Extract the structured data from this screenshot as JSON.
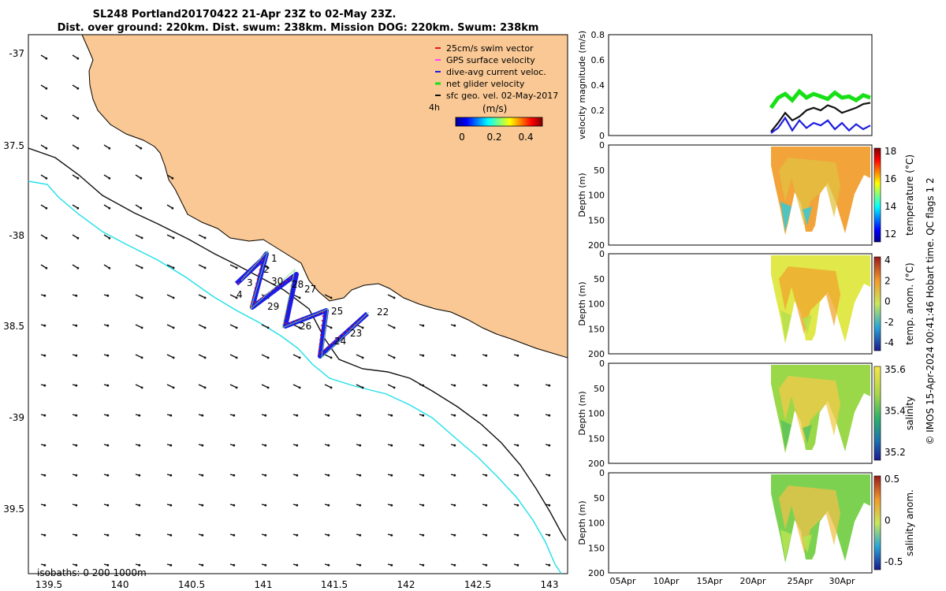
{
  "title": {
    "line1": "SL248 Portland20170422 21-Apr 23Z to 02-May 23Z.",
    "line2": "Dist. over ground: 220km. Dist. swum: 238km. Mission DOG: 220km. Swum: 238km"
  },
  "map": {
    "lon_ticks": [
      "139.5",
      "140",
      "140.5",
      "141",
      "141.5",
      "142",
      "142.5",
      "143"
    ],
    "lat_ticks": [
      "-37",
      "37.5",
      "-38",
      "38.5",
      "-39",
      "39.5"
    ],
    "isobaths_note": "isobaths: 0   200  1000m",
    "legend": [
      {
        "label": "25cm/s swim vector",
        "color": "#e8161b"
      },
      {
        "label": "GPS surface velocity",
        "color": "#ff40ff"
      },
      {
        "label": "dive-avg current veloc.",
        "color": "#1d1de0"
      },
      {
        "label": "net glider velocity",
        "color": "#17e017"
      },
      {
        "label": "sfc geo. vel. 02-May-2017",
        "color": "#111111"
      }
    ],
    "legend_interval": "4h",
    "colorbar_units": "(m/s)",
    "colorbar_ticks": [
      "0",
      "0.2",
      "0.4"
    ],
    "waypoints": [
      "1",
      "2",
      "3",
      "4",
      "30",
      "29",
      "28",
      "27",
      "26",
      "25",
      "24",
      "23",
      "22"
    ],
    "colors": {
      "land": "#f9c894",
      "track": "#1c1ce6",
      "track_marker": "#e51b1b",
      "isobath_200": "#1fe0e8",
      "isobath_1000": "#111111"
    }
  },
  "chart_data": [
    {
      "type": "line",
      "ylabel": "velocity magnitude (m/s)",
      "ylim": [
        0,
        0.8
      ],
      "yticks": [
        "0",
        "0.2",
        "0.4",
        "0.6",
        "0.8"
      ],
      "series": [
        {
          "name": "net glider velocity",
          "color": "#17e017",
          "values": [
            0.22,
            0.3,
            0.33,
            0.28,
            0.35,
            0.3,
            0.33,
            0.31,
            0.29,
            0.34,
            0.3,
            0.31,
            0.28,
            0.32,
            0.3
          ]
        },
        {
          "name": "sfc geo. vel.",
          "color": "#111111",
          "values": [
            0.03,
            0.1,
            0.18,
            0.12,
            0.15,
            0.2,
            0.22,
            0.2,
            0.24,
            0.22,
            0.18,
            0.2,
            0.22,
            0.25,
            0.26
          ]
        },
        {
          "name": "dive-avg current veloc.",
          "color": "#1d1de0",
          "values": [
            0.02,
            0.06,
            0.14,
            0.04,
            0.12,
            0.06,
            0.1,
            0.08,
            0.12,
            0.05,
            0.1,
            0.04,
            0.09,
            0.05,
            0.08
          ]
        }
      ]
    },
    {
      "type": "heatmap",
      "ylabel": "Depth (m)",
      "yticks": [
        "0",
        "50",
        "100",
        "150",
        "200"
      ],
      "colorbar_label": "temperature (°C)",
      "colorbar_ticks": [
        "12",
        "14",
        "16",
        "18"
      ]
    },
    {
      "type": "heatmap",
      "ylabel": "Depth (m)",
      "yticks": [
        "0",
        "50",
        "100",
        "150",
        "200"
      ],
      "colorbar_label": "temp. anom. (°C)",
      "colorbar_ticks": [
        "-4",
        "-2",
        "0",
        "2",
        "4"
      ]
    },
    {
      "type": "heatmap",
      "ylabel": "Depth (m)",
      "yticks": [
        "0",
        "50",
        "100",
        "150",
        "200"
      ],
      "colorbar_label": "salinity",
      "colorbar_ticks": [
        "35.2",
        "35.4",
        "35.6"
      ]
    },
    {
      "type": "heatmap",
      "ylabel": "Depth (m)",
      "yticks": [
        "0",
        "50",
        "100",
        "150",
        "200"
      ],
      "colorbar_label": "salinity anom.",
      "colorbar_ticks": [
        "-0.5",
        "0",
        "0.5"
      ]
    }
  ],
  "time_axis": {
    "ticks": [
      "05Apr",
      "10Apr",
      "15Apr",
      "20Apr",
      "25Apr",
      "30Apr"
    ]
  },
  "footer": "© IMOS 15-Apr-2024 00:41:46 Hobart time. QC flags 1  2"
}
